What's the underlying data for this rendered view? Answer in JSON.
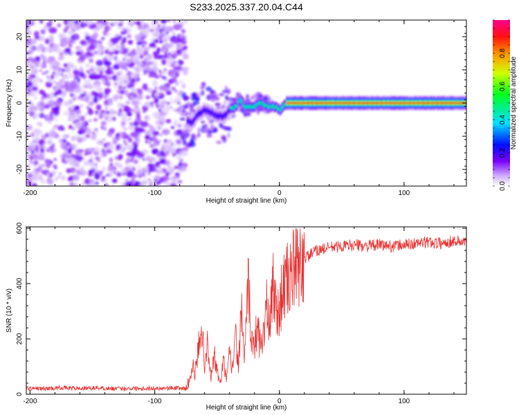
{
  "title": "S233.2025.337.20.04.C44",
  "chart_data": [
    {
      "type": "heatmap",
      "name": "spectrogram",
      "xlabel": "Height of straight line (km)",
      "ylabel": "Frequency (Hz)",
      "xlim": [
        -203,
        150
      ],
      "ylim": [
        -25,
        25
      ],
      "xticks": [
        -200,
        -100,
        0,
        100
      ],
      "yticks": [
        -20,
        -10,
        0,
        10,
        20
      ],
      "colorbar": {
        "label": "Normalized spectral amplitude",
        "range": [
          0,
          1
        ],
        "ticks": [
          0.0,
          0.2,
          0.4,
          0.6,
          0.8
        ],
        "tick_labels": [
          "0.0",
          "0.2",
          "0.4",
          "0.6",
          "0.8"
        ]
      },
      "regions": [
        {
          "x_range": [
            -203,
            -75
          ],
          "description": "diffuse noise, amplitude 0.05-0.25 across all frequencies"
        },
        {
          "x_range": [
            -75,
            -40
          ],
          "freq_center": -4,
          "amplitude": 0.25
        },
        {
          "x_range": [
            -40,
            5
          ],
          "freq_center": -2,
          "amplitude": 0.55
        },
        {
          "x_range": [
            5,
            150
          ],
          "freq_center": 0,
          "amplitude": 0.95
        }
      ],
      "ridge": [
        [
          -78,
          -5
        ],
        [
          -70,
          -6
        ],
        [
          -65,
          -3
        ],
        [
          -60,
          -2
        ],
        [
          -55,
          -3
        ],
        [
          -50,
          -4
        ],
        [
          -45,
          -4
        ],
        [
          -40,
          -2
        ],
        [
          -35,
          -1
        ],
        [
          -32,
          1
        ],
        [
          -28,
          -1
        ],
        [
          -20,
          -1
        ],
        [
          -15,
          0
        ],
        [
          -10,
          -1
        ],
        [
          -5,
          -1
        ],
        [
          0,
          -2
        ],
        [
          5,
          0
        ],
        [
          10,
          0
        ],
        [
          50,
          0
        ],
        [
          100,
          0
        ],
        [
          150,
          0
        ]
      ]
    },
    {
      "type": "line",
      "name": "snr",
      "xlabel": "Height of straight line (km)",
      "ylabel": "SNR (10 * v/v)",
      "xlim": [
        -203,
        150
      ],
      "ylim": [
        0,
        605
      ],
      "xticks": [
        -200,
        -100,
        0,
        100
      ],
      "yticks": [
        0,
        200,
        400,
        600
      ],
      "color": "#e83030",
      "series": [
        {
          "name": "SNR",
          "x": [
            -203,
            -190,
            -175,
            -160,
            -145,
            -130,
            -115,
            -100,
            -90,
            -80,
            -75,
            -72,
            -70,
            -68,
            -65,
            -63,
            -60,
            -58,
            -55,
            -52,
            -50,
            -47,
            -45,
            -42,
            -40,
            -38,
            -35,
            -33,
            -30,
            -28,
            -25,
            -22,
            -20,
            -18,
            -15,
            -12,
            -10,
            -8,
            -5,
            -2,
            0,
            3,
            5,
            8,
            10,
            12,
            15,
            18,
            20,
            25,
            30,
            35,
            40,
            50,
            60,
            70,
            80,
            90,
            100,
            110,
            120,
            130,
            140,
            150
          ],
          "y": [
            22,
            20,
            24,
            21,
            23,
            20,
            22,
            21,
            23,
            22,
            20,
            45,
            120,
            60,
            160,
            270,
            110,
            180,
            60,
            140,
            80,
            40,
            120,
            50,
            150,
            90,
            200,
            110,
            300,
            120,
            380,
            200,
            150,
            260,
            170,
            250,
            320,
            220,
            420,
            280,
            320,
            380,
            400,
            420,
            440,
            450,
            450,
            470,
            490,
            505,
            520,
            525,
            530,
            535,
            540,
            535,
            540,
            535,
            540,
            545,
            550,
            545,
            555,
            550
          ]
        }
      ]
    }
  ]
}
